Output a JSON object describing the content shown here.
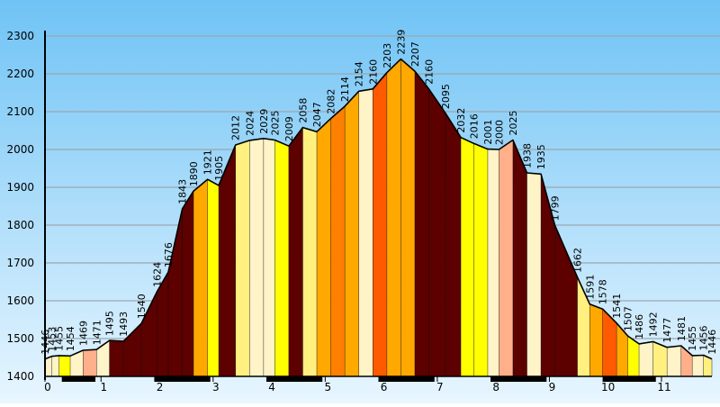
{
  "chart_data": {
    "type": "area",
    "title": "",
    "xlabel": "",
    "ylabel": "",
    "ylim": [
      1400,
      2300
    ],
    "yticks": [
      1400,
      1500,
      1600,
      1700,
      1800,
      1900,
      2000,
      2100,
      2200,
      2300
    ],
    "xlim": [
      0,
      11.9
    ],
    "xticks": [
      0,
      1,
      2,
      3,
      4,
      5,
      6,
      7,
      8,
      9,
      10,
      11
    ],
    "grid": true,
    "colors": {
      "sky_top": "#6fc3f5",
      "sky_bottom": "#e8f6ff",
      "outline": "#000000",
      "grid": "#9aa7b0"
    },
    "points": [
      {
        "x": 0.0,
        "y": 1446
      },
      {
        "x": 0.12,
        "y": 1453
      },
      {
        "x": 0.25,
        "y": 1455
      },
      {
        "x": 0.45,
        "y": 1454
      },
      {
        "x": 0.68,
        "y": 1469
      },
      {
        "x": 0.92,
        "y": 1471
      },
      {
        "x": 1.15,
        "y": 1495
      },
      {
        "x": 1.4,
        "y": 1493
      },
      {
        "x": 1.72,
        "y": 1540
      },
      {
        "x": 2.0,
        "y": 1624
      },
      {
        "x": 2.2,
        "y": 1676
      },
      {
        "x": 2.45,
        "y": 1843
      },
      {
        "x": 2.65,
        "y": 1890
      },
      {
        "x": 2.9,
        "y": 1921
      },
      {
        "x": 3.1,
        "y": 1905
      },
      {
        "x": 3.4,
        "y": 2012
      },
      {
        "x": 3.65,
        "y": 2024
      },
      {
        "x": 3.9,
        "y": 2029
      },
      {
        "x": 4.1,
        "y": 2025
      },
      {
        "x": 4.35,
        "y": 2009
      },
      {
        "x": 4.6,
        "y": 2058
      },
      {
        "x": 4.85,
        "y": 2047
      },
      {
        "x": 5.1,
        "y": 2082
      },
      {
        "x": 5.35,
        "y": 2114
      },
      {
        "x": 5.6,
        "y": 2154
      },
      {
        "x": 5.85,
        "y": 2160
      },
      {
        "x": 6.1,
        "y": 2203
      },
      {
        "x": 6.35,
        "y": 2239
      },
      {
        "x": 6.6,
        "y": 2207
      },
      {
        "x": 6.85,
        "y": 2160
      },
      {
        "x": 7.15,
        "y": 2095
      },
      {
        "x": 7.42,
        "y": 2032
      },
      {
        "x": 7.65,
        "y": 2016
      },
      {
        "x": 7.9,
        "y": 2001
      },
      {
        "x": 8.1,
        "y": 2000
      },
      {
        "x": 8.35,
        "y": 2025
      },
      {
        "x": 8.6,
        "y": 1938
      },
      {
        "x": 8.85,
        "y": 1935
      },
      {
        "x": 9.1,
        "y": 1799
      },
      {
        "x": 9.5,
        "y": 1662
      },
      {
        "x": 9.72,
        "y": 1591
      },
      {
        "x": 9.95,
        "y": 1578
      },
      {
        "x": 10.2,
        "y": 1541
      },
      {
        "x": 10.4,
        "y": 1507
      },
      {
        "x": 10.6,
        "y": 1486
      },
      {
        "x": 10.85,
        "y": 1492
      },
      {
        "x": 11.1,
        "y": 1477
      },
      {
        "x": 11.35,
        "y": 1481
      },
      {
        "x": 11.55,
        "y": 1455
      },
      {
        "x": 11.75,
        "y": 1456
      },
      {
        "x": 11.9,
        "y": 1446
      }
    ],
    "segment_colors": [
      "#fff3c8",
      "#fff3c8",
      "#ffff00",
      "#fff3c8",
      "#ffb08a",
      "#fff3c8",
      "#5c0000",
      "#5c0000",
      "#5c0000",
      "#5c0000",
      "#5c0000",
      "#5c0000",
      "#ffa800",
      "#ffff00",
      "#5c0000",
      "#fff080",
      "#fff3c8",
      "#fff3c8",
      "#ffff00",
      "#5c0000",
      "#fff080",
      "#ffa800",
      "#ff8000",
      "#ffa800",
      "#fff3c8",
      "#ff5a00",
      "#ffa800",
      "#ffa800",
      "#5c0000",
      "#5c0000",
      "#5c0000",
      "#ffff00",
      "#ffff00",
      "#fff3c8",
      "#ffb08a",
      "#5c0000",
      "#fff3c8",
      "#5c0000",
      "#5c0000",
      "#fff080",
      "#ffa800",
      "#ff5a00",
      "#ffa800",
      "#ffff00",
      "#fff3c8",
      "#fff080",
      "#fff3c8",
      "#ffb08a",
      "#fff3c8",
      "#fff080"
    ],
    "dark_bar_spans": [
      [
        0.3,
        0.9
      ],
      [
        1.95,
        2.95
      ],
      [
        3.95,
        4.95
      ],
      [
        5.95,
        6.95
      ],
      [
        7.95,
        8.95
      ],
      [
        9.95,
        10.9
      ]
    ]
  }
}
